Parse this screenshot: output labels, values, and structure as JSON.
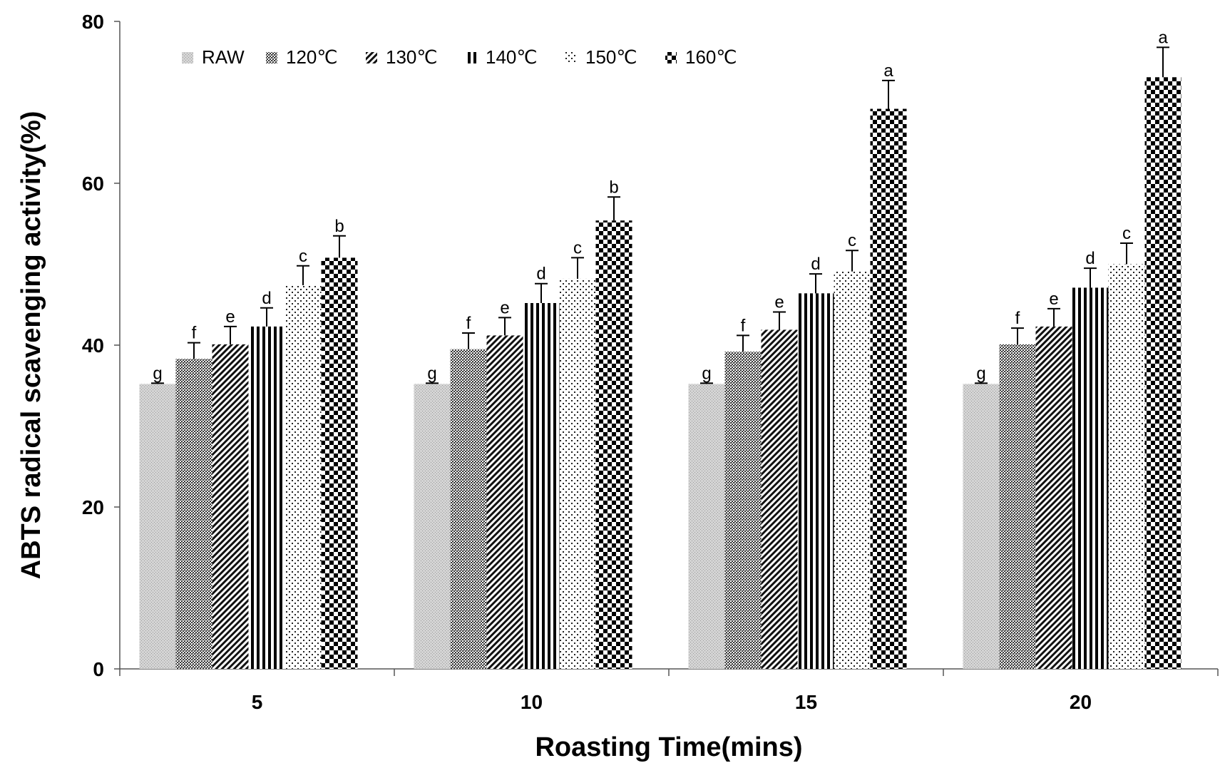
{
  "chart_data": {
    "type": "bar",
    "xlabel": "Roasting Time(mins)",
    "ylabel": "ABTS radical scavenging activity(%)",
    "ylim": [
      0,
      80
    ],
    "yticks": [
      "0",
      "20",
      "40",
      "60",
      "80"
    ],
    "categories": [
      "5",
      "10",
      "15",
      "20"
    ],
    "grid": false,
    "legend_position": "top-left",
    "error_bars": true,
    "series": [
      {
        "name": "RAW",
        "pattern": "fine-dots",
        "values": [
          35.2,
          35.2,
          35.2,
          35.2
        ],
        "errors": [
          0.1,
          0.1,
          0.1,
          0.1
        ],
        "letters": [
          "g",
          "g",
          "g",
          "g"
        ]
      },
      {
        "name": "120℃",
        "pattern": "dense-dots",
        "values": [
          38.3,
          39.5,
          39.2,
          40.1
        ],
        "errors": [
          2.0,
          2.0,
          2.0,
          2.0
        ],
        "letters": [
          "f",
          "f",
          "f",
          "f"
        ]
      },
      {
        "name": "130℃",
        "pattern": "diagonal-stripes",
        "values": [
          40.1,
          41.2,
          41.9,
          42.3
        ],
        "errors": [
          2.2,
          2.2,
          2.2,
          2.2
        ],
        "letters": [
          "e",
          "e",
          "e",
          "e"
        ]
      },
      {
        "name": "140℃",
        "pattern": "vertical-stripes",
        "values": [
          42.3,
          45.2,
          46.4,
          47.1
        ],
        "errors": [
          2.3,
          2.4,
          2.4,
          2.4
        ],
        "letters": [
          "d",
          "d",
          "d",
          "d"
        ]
      },
      {
        "name": "150℃",
        "pattern": "sparse-dots",
        "values": [
          47.4,
          48.2,
          49.1,
          50.0
        ],
        "errors": [
          2.4,
          2.6,
          2.6,
          2.6
        ],
        "letters": [
          "c",
          "c",
          "c",
          "c"
        ]
      },
      {
        "name": "160℃",
        "pattern": "checkerboard",
        "values": [
          50.8,
          55.4,
          69.2,
          73.1
        ],
        "errors": [
          2.7,
          2.9,
          3.5,
          3.7
        ],
        "letters": [
          "b",
          "b",
          "a",
          "a"
        ]
      }
    ]
  }
}
